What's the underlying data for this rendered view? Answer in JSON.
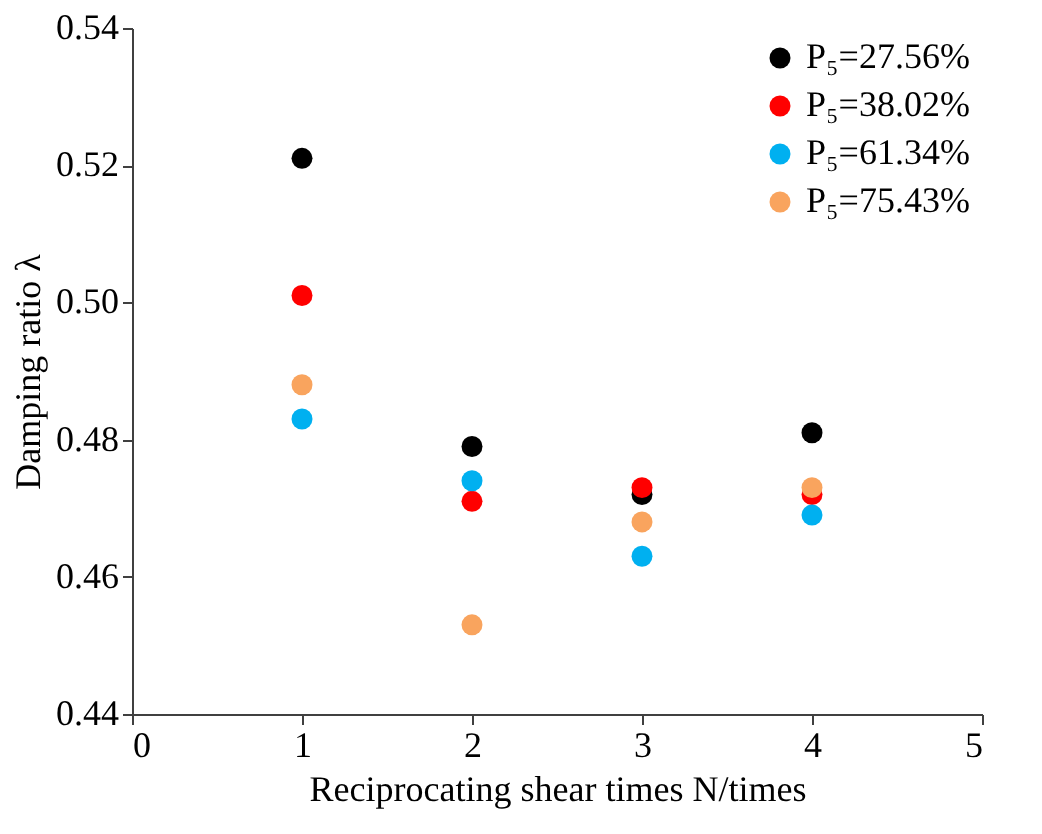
{
  "chart_data": {
    "type": "scatter",
    "xlabel": "Reciprocating shear times N/times",
    "ylabel": "Damping ratio λ",
    "x": [
      1,
      2,
      3,
      4
    ],
    "series": [
      {
        "name": "P₅=27.56%",
        "color": "#000000",
        "values": [
          0.521,
          0.479,
          0.472,
          0.481
        ]
      },
      {
        "name": "P₅=38.02%",
        "color": "#ff0000",
        "values": [
          0.501,
          0.471,
          0.473,
          0.472
        ]
      },
      {
        "name": "P₅=61.34%",
        "color": "#00b0f0",
        "values": [
          0.483,
          0.474,
          0.463,
          0.469
        ]
      },
      {
        "name": "P₅=75.43%",
        "color": "#f9a45e",
        "values": [
          0.488,
          0.453,
          0.468,
          0.473
        ]
      }
    ],
    "xlim": [
      0,
      5
    ],
    "xticks": [
      0,
      1,
      2,
      3,
      4,
      5
    ],
    "ylim": [
      0.44,
      0.54
    ],
    "yticks": [
      0.44,
      0.46,
      0.48,
      {
        "value": 0.5,
        "label": "0.50"
      },
      0.52,
      0.54
    ],
    "grid": false,
    "legend": "top right",
    "marker": "circle"
  }
}
